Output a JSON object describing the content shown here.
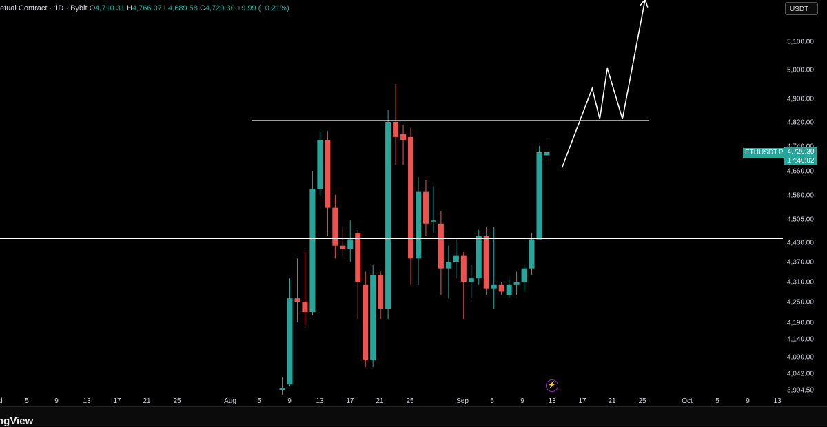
{
  "legend": {
    "symbol_text": "etual Contract · 1D · Bybit",
    "o_label": "O",
    "o_value": "4,710.31",
    "h_label": "H",
    "h_value": "4,766.07",
    "l_label": "L",
    "l_value": "4,689.58",
    "c_label": "C",
    "c_value": "4,720.30",
    "change": "+9.99 (+0.21%)"
  },
  "currency_button": "USDT",
  "symbol_tag": "ETHUSDT.P",
  "last_price": "4,720.30",
  "countdown": "17:40:02",
  "brand_text": "ngView",
  "event_icon": "lightning-bolt-icon",
  "colors": {
    "up": "#26a69a",
    "down": "#ef5350",
    "background": "#000000",
    "drawing": "#ffffff"
  },
  "chart_data": {
    "type": "candlestick",
    "timeframe": "1D",
    "y_ticks": [
      "5,100.00",
      "5,000.00",
      "4,900.00",
      "4,820.00",
      "4,740.00",
      "4,660.00",
      "4,580.00",
      "4,505.00",
      "4,430.00",
      "4,370.00",
      "4,310.00",
      "4,250.00",
      "4,190.00",
      "4,140.00",
      "4,090.00",
      "4,042.00",
      "3,994.50"
    ],
    "x_ticks": [
      "d",
      "5",
      "9",
      "13",
      "17",
      "21",
      "25",
      "Aug",
      "5",
      "9",
      "13",
      "17",
      "21",
      "25",
      "Sep",
      "5",
      "9",
      "13",
      "17",
      "21",
      "25",
      "Oct",
      "5",
      "9",
      "13"
    ],
    "candles": [
      {
        "date": "Aug 8",
        "o": 3994,
        "h": 4030,
        "l": 3980,
        "c": 4000
      },
      {
        "date": "Aug 9",
        "o": 4010,
        "h": 4320,
        "l": 4005,
        "c": 4260
      },
      {
        "date": "Aug 10",
        "o": 4260,
        "h": 4380,
        "l": 4190,
        "c": 4250
      },
      {
        "date": "Aug 11",
        "o": 4250,
        "h": 4400,
        "l": 4180,
        "c": 4220
      },
      {
        "date": "Aug 12",
        "o": 4220,
        "h": 4660,
        "l": 4210,
        "c": 4600
      },
      {
        "date": "Aug 13",
        "o": 4600,
        "h": 4790,
        "l": 4580,
        "c": 4760
      },
      {
        "date": "Aug 14",
        "o": 4760,
        "h": 4790,
        "l": 4450,
        "c": 4540
      },
      {
        "date": "Aug 15",
        "o": 4540,
        "h": 4580,
        "l": 4380,
        "c": 4420
      },
      {
        "date": "Aug 16",
        "o": 4420,
        "h": 4480,
        "l": 4390,
        "c": 4410
      },
      {
        "date": "Aug 17",
        "o": 4410,
        "h": 4500,
        "l": 4370,
        "c": 4440
      },
      {
        "date": "Aug 18",
        "o": 4460,
        "h": 4470,
        "l": 4200,
        "c": 4310
      },
      {
        "date": "Aug 19",
        "o": 4300,
        "h": 4340,
        "l": 4060,
        "c": 4080
      },
      {
        "date": "Aug 20",
        "o": 4080,
        "h": 4360,
        "l": 4060,
        "c": 4330
      },
      {
        "date": "Aug 21",
        "o": 4330,
        "h": 4340,
        "l": 4200,
        "c": 4230
      },
      {
        "date": "Aug 22",
        "o": 4230,
        "h": 4860,
        "l": 4200,
        "c": 4820
      },
      {
        "date": "Aug 23",
        "o": 4820,
        "h": 4950,
        "l": 4680,
        "c": 4770
      },
      {
        "date": "Aug 24",
        "o": 4780,
        "h": 4810,
        "l": 4680,
        "c": 4760
      },
      {
        "date": "Aug 25",
        "o": 4770,
        "h": 4800,
        "l": 4300,
        "c": 4380
      },
      {
        "date": "Aug 26",
        "o": 4380,
        "h": 4640,
        "l": 4300,
        "c": 4590
      },
      {
        "date": "Aug 27",
        "o": 4590,
        "h": 4630,
        "l": 4450,
        "c": 4490
      },
      {
        "date": "Aug 28",
        "o": 4500,
        "h": 4610,
        "l": 4460,
        "c": 4500
      },
      {
        "date": "Aug 29",
        "o": 4490,
        "h": 4530,
        "l": 4270,
        "c": 4350
      },
      {
        "date": "Aug 30",
        "o": 4350,
        "h": 4420,
        "l": 4260,
        "c": 4370
      },
      {
        "date": "Aug 31",
        "o": 4370,
        "h": 4440,
        "l": 4320,
        "c": 4390
      },
      {
        "date": "Sep 1",
        "o": 4390,
        "h": 4400,
        "l": 4200,
        "c": 4310
      },
      {
        "date": "Sep 2",
        "o": 4310,
        "h": 4360,
        "l": 4260,
        "c": 4320
      },
      {
        "date": "Sep 3",
        "o": 4320,
        "h": 4470,
        "l": 4300,
        "c": 4450
      },
      {
        "date": "Sep 4",
        "o": 4450,
        "h": 4480,
        "l": 4270,
        "c": 4290
      },
      {
        "date": "Sep 5",
        "o": 4290,
        "h": 4480,
        "l": 4230,
        "c": 4300
      },
      {
        "date": "Sep 6",
        "o": 4300,
        "h": 4310,
        "l": 4270,
        "c": 4280
      },
      {
        "date": "Sep 7",
        "o": 4270,
        "h": 4320,
        "l": 4260,
        "c": 4300
      },
      {
        "date": "Sep 8",
        "o": 4300,
        "h": 4340,
        "l": 4270,
        "c": 4310
      },
      {
        "date": "Sep 9",
        "o": 4310,
        "h": 4360,
        "l": 4280,
        "c": 4350
      },
      {
        "date": "Sep 10",
        "o": 4350,
        "h": 4460,
        "l": 4330,
        "c": 4440
      },
      {
        "date": "Sep 11",
        "o": 4440,
        "h": 4740,
        "l": 4440,
        "c": 4720
      },
      {
        "date": "Sep 12",
        "o": 4710,
        "h": 4766,
        "l": 4689,
        "c": 4720
      }
    ],
    "horizontal_lines": [
      4825,
      4442
    ],
    "projection_path": [
      {
        "date": "Sep 14",
        "price": 4670
      },
      {
        "date": "Sep 18",
        "price": 4935
      },
      {
        "date": "Sep 19",
        "price": 4830
      },
      {
        "date": "Sep 20",
        "price": 5005
      },
      {
        "date": "Sep 22",
        "price": 4830
      },
      {
        "date": "Sep 25",
        "price": 5260
      }
    ],
    "target_line": 5260
  }
}
